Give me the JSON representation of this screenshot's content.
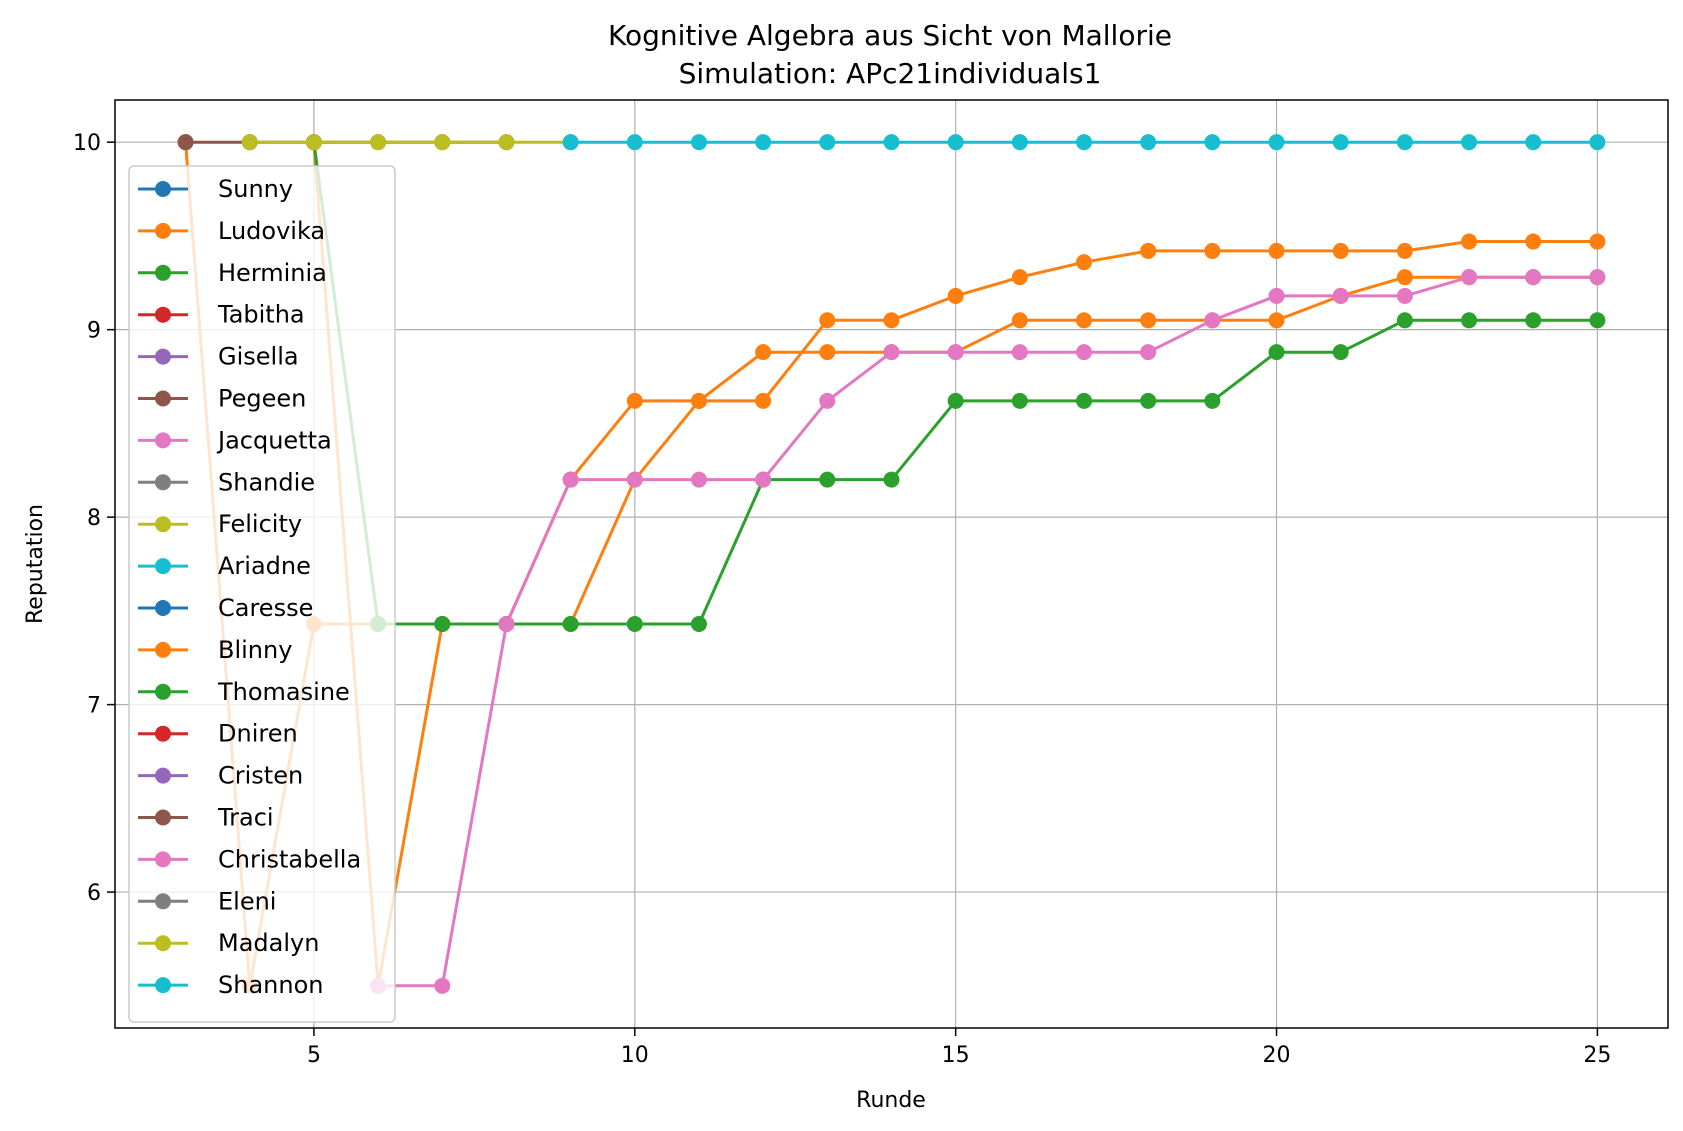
{
  "chart_data": {
    "type": "line",
    "title": "Kognitive Algebra aus Sicht von Mallorie",
    "subtitle": "Simulation: APc21individuals1",
    "xlabel": "Runde",
    "ylabel": "Reputation",
    "xlim": [
      1.9,
      26.1
    ],
    "ylim": [
      5.275,
      10.225
    ],
    "xticks": [
      5,
      10,
      15,
      20,
      25
    ],
    "yticks": [
      6,
      7,
      8,
      9,
      10
    ],
    "grid": true,
    "legend_position": "upper-left",
    "series": [
      {
        "name": "Sunny",
        "color": "#1f77b4",
        "x": [],
        "y": []
      },
      {
        "name": "Ludovika",
        "color": "#ff7f0e",
        "x": [
          3,
          4,
          5,
          6,
          7,
          8,
          9,
          10,
          11,
          12,
          13,
          14,
          15,
          16,
          17,
          18,
          19,
          20,
          21,
          22,
          23,
          24,
          25
        ],
        "y": [
          10,
          5.5,
          7.43,
          7.43,
          7.43,
          7.43,
          8.2,
          8.62,
          8.62,
          8.62,
          9.05,
          9.05,
          9.18,
          9.28,
          9.36,
          9.42,
          9.42,
          9.42,
          9.42,
          9.42,
          9.47,
          9.47,
          9.47
        ]
      },
      {
        "name": "Herminia",
        "color": "#2ca02c",
        "x": [],
        "y": []
      },
      {
        "name": "Tabitha",
        "color": "#d62728",
        "x": [],
        "y": []
      },
      {
        "name": "Gisella",
        "color": "#9467bd",
        "x": [],
        "y": []
      },
      {
        "name": "Pegeen",
        "color": "#8c564b",
        "x": [],
        "y": []
      },
      {
        "name": "Jacquetta",
        "color": "#e377c2",
        "x": [],
        "y": []
      },
      {
        "name": "Shandie",
        "color": "#7f7f7f",
        "x": [],
        "y": []
      },
      {
        "name": "Felicity",
        "color": "#bcbd22",
        "x": [],
        "y": []
      },
      {
        "name": "Ariadne",
        "color": "#17becf",
        "x": [],
        "y": []
      },
      {
        "name": "Caresse",
        "color": "#1f77b4",
        "x": [],
        "y": []
      },
      {
        "name": "Blinny",
        "color": "#ff7f0e",
        "x": [
          5,
          6,
          7,
          8,
          9,
          10,
          11,
          12,
          13,
          14,
          15,
          16,
          17,
          18,
          19,
          20,
          21,
          22,
          23,
          24,
          25
        ],
        "y": [
          10,
          5.5,
          7.43,
          7.43,
          7.43,
          8.2,
          8.62,
          8.88,
          8.88,
          8.88,
          8.88,
          9.05,
          9.05,
          9.05,
          9.05,
          9.05,
          9.18,
          9.28,
          9.28,
          9.28,
          9.28
        ]
      },
      {
        "name": "Thomasine",
        "color": "#2ca02c",
        "x": [
          5,
          6,
          7,
          8,
          9,
          10,
          11,
          12,
          13,
          14,
          15,
          16,
          17,
          18,
          19,
          20,
          21,
          22,
          23,
          24,
          25
        ],
        "y": [
          10,
          7.43,
          7.43,
          7.43,
          7.43,
          7.43,
          7.43,
          8.2,
          8.2,
          8.2,
          8.62,
          8.62,
          8.62,
          8.62,
          8.62,
          8.88,
          8.88,
          9.05,
          9.05,
          9.05,
          9.05
        ]
      },
      {
        "name": "Dniren",
        "color": "#d62728",
        "x": [],
        "y": []
      },
      {
        "name": "Cristen",
        "color": "#9467bd",
        "x": [],
        "y": []
      },
      {
        "name": "Traci",
        "color": "#8c564b",
        "x": [
          3,
          4,
          5,
          6,
          7,
          8
        ],
        "y": [
          10,
          10,
          10,
          10,
          10,
          10
        ]
      },
      {
        "name": "Christabella",
        "color": "#e377c2",
        "x": [
          6,
          7,
          8,
          9,
          10,
          11,
          12,
          13,
          14,
          15,
          16,
          17,
          18,
          19,
          20,
          21,
          22,
          23,
          24,
          25
        ],
        "y": [
          5.5,
          5.5,
          7.43,
          8.2,
          8.2,
          8.2,
          8.2,
          8.62,
          8.88,
          8.88,
          8.88,
          8.88,
          8.88,
          9.05,
          9.18,
          9.18,
          9.18,
          9.28,
          9.28,
          9.28
        ]
      },
      {
        "name": "Eleni",
        "color": "#7f7f7f",
        "x": [],
        "y": []
      },
      {
        "name": "Madalyn",
        "color": "#bcbd22",
        "x": [
          4,
          5,
          6,
          7,
          8,
          9
        ],
        "y": [
          10,
          10,
          10,
          10,
          10,
          10
        ]
      },
      {
        "name": "Shannon",
        "color": "#17becf",
        "x": [
          9,
          10,
          11,
          12,
          13,
          14,
          15,
          16,
          17,
          18,
          19,
          20,
          21,
          22,
          23,
          24,
          25
        ],
        "y": [
          10,
          10,
          10,
          10,
          10,
          10,
          10,
          10,
          10,
          10,
          10,
          10,
          10,
          10,
          10,
          10,
          10
        ]
      }
    ]
  }
}
